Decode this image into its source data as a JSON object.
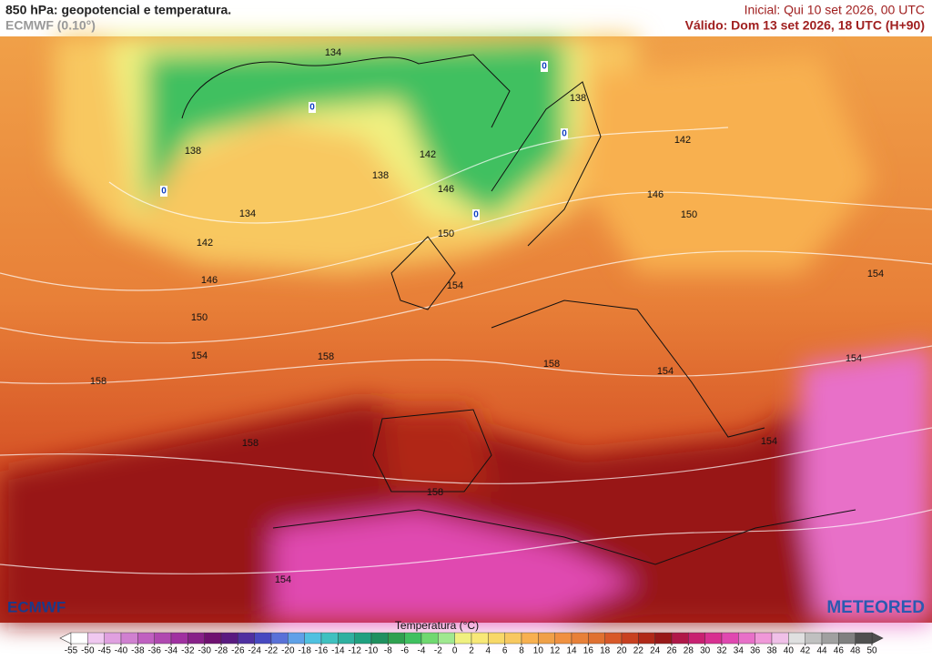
{
  "header": {
    "title": "850 hPa: geopotencial e temperatura.",
    "model": "ECMWF (0.10°)",
    "initial": "Inicial: Qui 10 set 2026, 00 UTC",
    "valid": "Válido: Dom 13 set 2026, 18 UTC (H+90)"
  },
  "map": {
    "contour_labels": [
      134,
      138,
      138,
      142,
      142,
      138,
      146,
      134,
      146,
      150,
      150,
      142,
      146,
      154,
      154,
      150,
      154,
      158,
      158,
      154,
      158,
      154,
      158,
      154,
      158,
      154
    ],
    "isotherm_labels": [
      0,
      0,
      0,
      0,
      0
    ]
  },
  "logos": {
    "left": "ECMWF",
    "right": "METEORED"
  },
  "colorbar": {
    "title": "Temperatura (°C)",
    "ticks": [
      -55,
      -50,
      -45,
      -40,
      -38,
      -36,
      -34,
      -32,
      -30,
      -28,
      -26,
      -24,
      -22,
      -20,
      -18,
      -16,
      -14,
      -12,
      -10,
      -8,
      -6,
      -4,
      -2,
      0,
      2,
      4,
      6,
      8,
      10,
      12,
      14,
      16,
      18,
      20,
      22,
      24,
      26,
      28,
      30,
      32,
      34,
      36,
      38,
      40,
      42,
      44,
      46,
      48,
      50
    ],
    "colors": [
      "#ffffff",
      "#f0c8f0",
      "#e0a0e0",
      "#d080d0",
      "#c060c0",
      "#b048b0",
      "#a030a0",
      "#882088",
      "#701070",
      "#5a1a80",
      "#5030a0",
      "#4848c0",
      "#5a70d8",
      "#60a0e8",
      "#50c0e0",
      "#40c0c0",
      "#30b0a0",
      "#20a080",
      "#209060",
      "#30a050",
      "#40c060",
      "#70d870",
      "#a0e890",
      "#f0f080",
      "#f8e878",
      "#f8d868",
      "#f8c860",
      "#f8b050",
      "#f0a048",
      "#f09040",
      "#e88038",
      "#e07030",
      "#d85828",
      "#c84020",
      "#b02818",
      "#981818",
      "#b01848",
      "#c82070",
      "#d83090",
      "#e048b0",
      "#e870c8",
      "#f098d8",
      "#f0c0e8",
      "#e0e0e0",
      "#c0c0c0",
      "#a0a0a0",
      "#808080",
      "#505050"
    ]
  }
}
